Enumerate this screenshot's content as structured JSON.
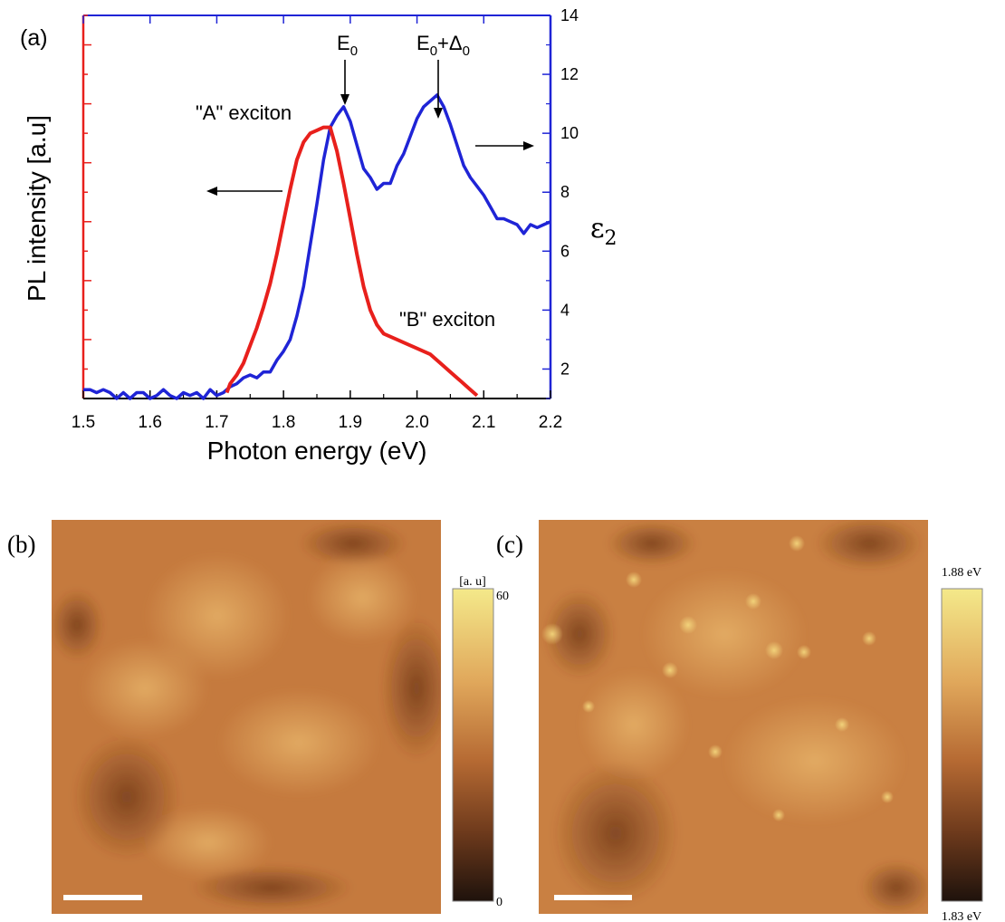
{
  "panels": {
    "a_label": "(a)",
    "b_label": "(b)",
    "c_label": "(c)"
  },
  "colors": {
    "pl": "#e8201c",
    "eps": "#1f24d6",
    "axis_left": "#e8201c",
    "axis_right": "#1f24d6",
    "text": "#000000"
  },
  "chart_data": [
    {
      "type": "line",
      "xlabel": "Photon energy (eV)",
      "ylabel_left": "PL intensity [a.u]",
      "ylabel_right": "ε",
      "ylabel_right_sub": "2",
      "xlim": [
        1.5,
        2.2
      ],
      "xticks": [
        "1.5",
        "1.6",
        "1.7",
        "1.8",
        "1.9",
        "2.0",
        "2.1",
        "2.2"
      ],
      "ylim_right": [
        1,
        14
      ],
      "yticks_right": [
        "2",
        "4",
        "6",
        "8",
        "10",
        "12",
        "14"
      ],
      "annotations": {
        "a_exciton": "\"A\" exciton",
        "b_exciton": "\"B\" exciton",
        "e0": "E",
        "e0_sub": "0",
        "e0d0_e": "E",
        "e0d0_sub1": "0",
        "e0d0_plus": "+Δ",
        "e0d0_sub2": "0"
      },
      "series": [
        {
          "key": "eps2",
          "axis": "right",
          "x": [
            1.5,
            1.51,
            1.52,
            1.53,
            1.54,
            1.55,
            1.56,
            1.57,
            1.58,
            1.59,
            1.6,
            1.61,
            1.62,
            1.63,
            1.64,
            1.65,
            1.66,
            1.67,
            1.68,
            1.69,
            1.7,
            1.71,
            1.72,
            1.73,
            1.74,
            1.75,
            1.76,
            1.77,
            1.78,
            1.79,
            1.8,
            1.81,
            1.82,
            1.83,
            1.84,
            1.85,
            1.86,
            1.87,
            1.88,
            1.89,
            1.9,
            1.91,
            1.92,
            1.93,
            1.94,
            1.95,
            1.96,
            1.97,
            1.98,
            1.99,
            2.0,
            2.01,
            2.02,
            2.03,
            2.04,
            2.05,
            2.06,
            2.07,
            2.08,
            2.09,
            2.1,
            2.11,
            2.12,
            2.13,
            2.14,
            2.15,
            2.16,
            2.17,
            2.18,
            2.19,
            2.2
          ],
          "y": [
            1.3,
            1.3,
            1.2,
            1.3,
            1.2,
            1.0,
            1.2,
            1.0,
            1.2,
            1.2,
            1.0,
            1.1,
            1.3,
            1.1,
            1.0,
            1.2,
            1.1,
            1.2,
            1.0,
            1.3,
            1.1,
            1.2,
            1.4,
            1.5,
            1.7,
            1.8,
            1.7,
            1.9,
            1.9,
            2.3,
            2.6,
            3.0,
            3.8,
            4.8,
            6.2,
            7.6,
            9.1,
            10.2,
            10.6,
            10.9,
            10.4,
            9.6,
            8.8,
            8.5,
            8.1,
            8.3,
            8.3,
            8.9,
            9.3,
            9.9,
            10.5,
            10.9,
            11.1,
            11.3,
            10.9,
            10.3,
            9.6,
            8.9,
            8.5,
            8.2,
            7.9,
            7.5,
            7.1,
            7.1,
            7.0,
            6.9,
            6.6,
            6.9,
            6.8,
            6.9,
            7.0
          ]
        },
        {
          "key": "pl",
          "axis": "left",
          "x": [
            1.715,
            1.72,
            1.73,
            1.74,
            1.75,
            1.76,
            1.77,
            1.78,
            1.79,
            1.8,
            1.81,
            1.82,
            1.83,
            1.84,
            1.85,
            1.86,
            1.87,
            1.88,
            1.89,
            1.9,
            1.91,
            1.92,
            1.93,
            1.94,
            1.95,
            1.96,
            1.97,
            1.98,
            1.99,
            2.0,
            2.01,
            2.02,
            2.03,
            2.04,
            2.05,
            2.06,
            2.07,
            2.08,
            2.09
          ],
          "y": [
            1.2,
            1.5,
            1.8,
            2.2,
            2.8,
            3.4,
            4.1,
            4.9,
            5.9,
            7.0,
            8.1,
            9.1,
            9.7,
            10.0,
            10.1,
            10.2,
            10.2,
            9.4,
            8.3,
            7.1,
            5.9,
            4.8,
            4.0,
            3.5,
            3.2,
            3.1,
            3.0,
            2.9,
            2.8,
            2.7,
            2.6,
            2.5,
            2.3,
            2.1,
            1.9,
            1.7,
            1.5,
            1.3,
            1.1
          ]
        }
      ]
    },
    {
      "type": "heatmap",
      "panel": "b",
      "colorbar_unit": "[a. u]",
      "colorbar_max": "60",
      "colorbar_min": "0"
    },
    {
      "type": "heatmap",
      "panel": "c",
      "colorbar_max": "1.88 eV",
      "colorbar_min": "1.83 eV"
    }
  ]
}
